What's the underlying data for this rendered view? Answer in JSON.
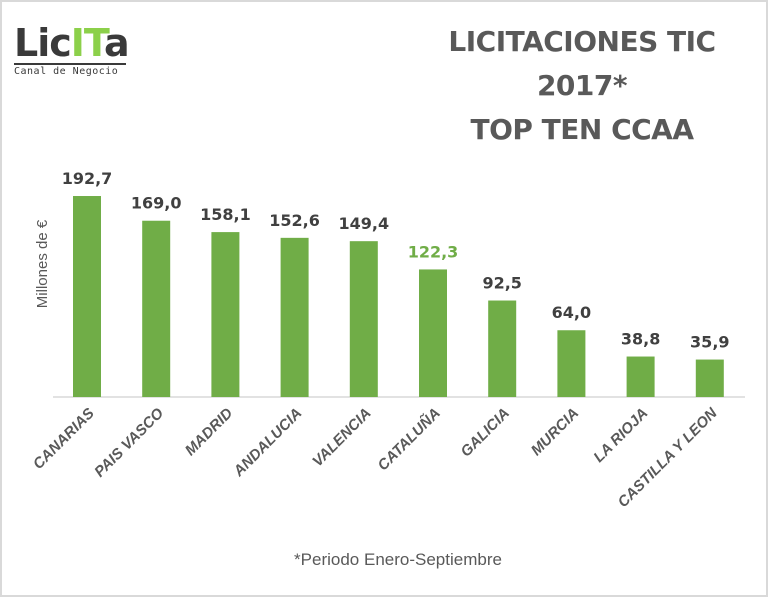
{
  "logo": {
    "text_dark": "Lic",
    "text_accent": "IT",
    "text_end": "a",
    "tagline": "Canal de Negocio",
    "accent": "#8cd04a"
  },
  "title": {
    "line1": "LICITACIONES TIC 2017*",
    "line2": "TOP TEN CCAA"
  },
  "chart_data": {
    "type": "bar",
    "categories": [
      "CANARIAS",
      "PAIS VASCO",
      "MADRID",
      "ANDALUCIA",
      "VALENCIA",
      "CATALUÑA",
      "GALICIA",
      "MURCIA",
      "LA RIOJA",
      "CASTILLA Y LEON"
    ],
    "values": [
      192.7,
      169.0,
      158.1,
      152.6,
      149.4,
      122.3,
      92.5,
      64.0,
      38.8,
      35.9
    ],
    "data_labels": [
      "192,7",
      "169,0",
      "158,1",
      "152,6",
      "149,4",
      "122,3",
      "92,5",
      "64,0",
      "38,8",
      "35,9"
    ],
    "highlight_index": 5,
    "ylabel": "Millones de €",
    "xlabel": "",
    "footnote": "*Periodo Enero-Septiembre",
    "grid": false,
    "legend": "none",
    "colors": {
      "bar": "#70ad47",
      "label": "#404040",
      "highlight_label": "#70ad47",
      "axis": "#d9d9d9"
    }
  }
}
